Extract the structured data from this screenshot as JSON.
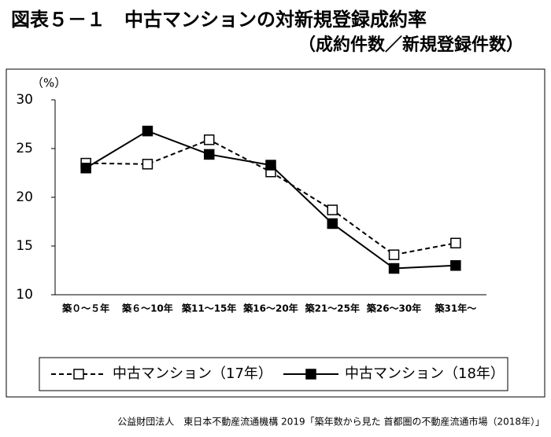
{
  "chart_data": {
    "type": "line",
    "title": "図表５－１　中古マンションの対新規登録成約率",
    "subtitle": "（成約件数／新規登録件数）",
    "y_label": "（%）",
    "categories": [
      "築０～５年",
      "築６～10年",
      "築11～15年",
      "築16～20年",
      "築21～25年",
      "築26～30年",
      "築31年～"
    ],
    "series": [
      {
        "name": "中古マンション（17年）",
        "color": "#000000",
        "line_style": "dashed",
        "marker": "open-square",
        "values": [
          23.5,
          23.4,
          25.9,
          22.6,
          18.7,
          14.1,
          15.3
        ]
      },
      {
        "name": "中古マンション（18年）",
        "color": "#000000",
        "line_style": "solid",
        "marker": "filled-square",
        "values": [
          23.0,
          26.8,
          24.4,
          23.3,
          17.3,
          12.7,
          13.0
        ]
      }
    ],
    "ylim": [
      10,
      30
    ],
    "yticks": [
      10,
      15,
      20,
      25,
      30
    ],
    "grid": false,
    "legend": "bottom",
    "source": "公益財団法人　東日本不動産流通機構 2019「築年数から見た 首都圏の不動産流通市場（2018年）」"
  }
}
